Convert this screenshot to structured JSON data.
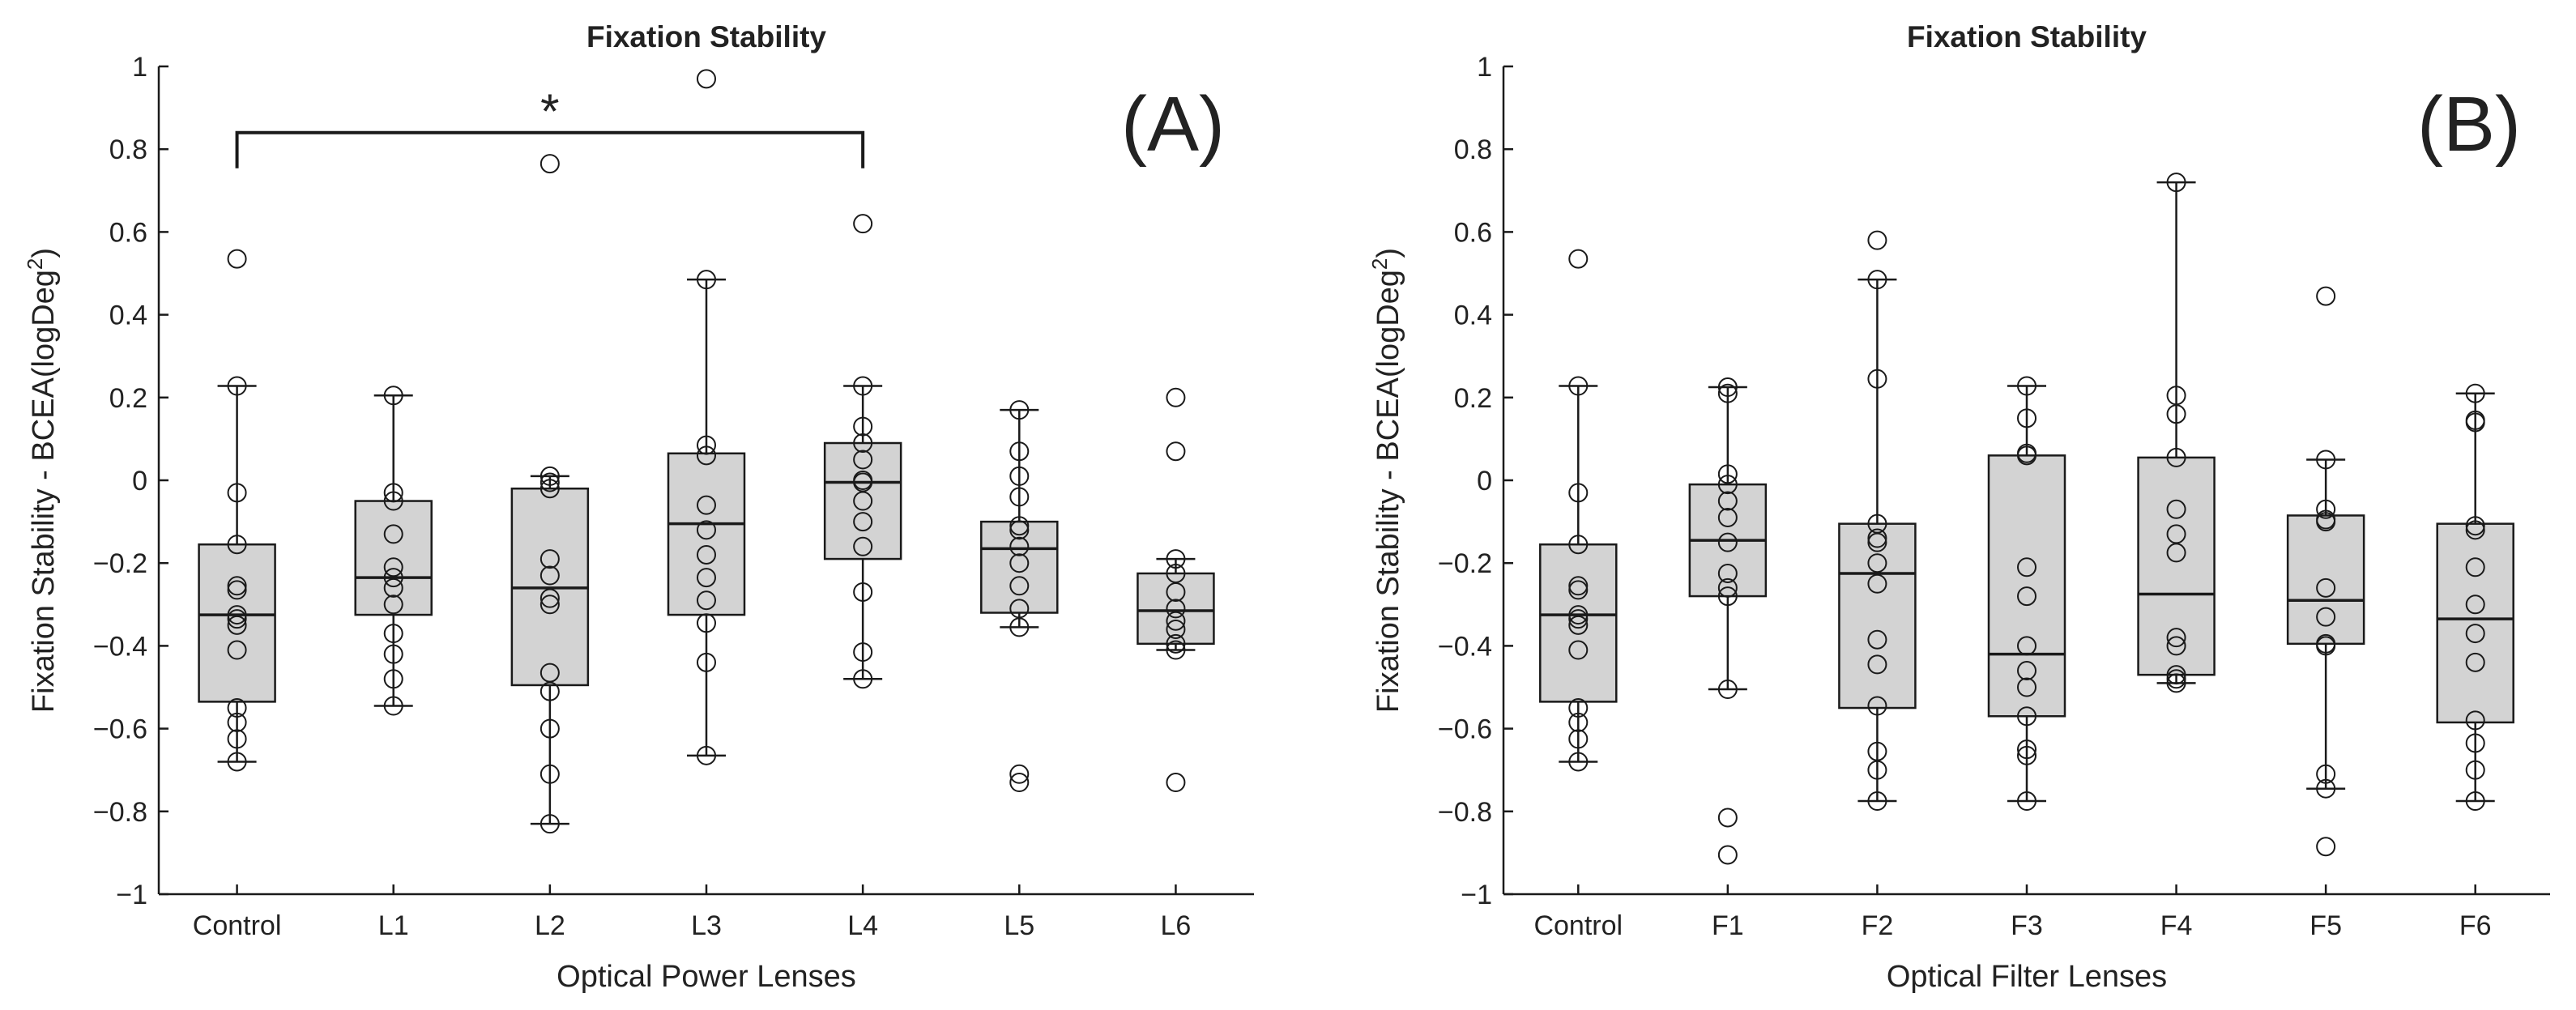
{
  "chart_data": [
    {
      "type": "boxplot",
      "title": "Fixation Stability",
      "panel_label": "(A)",
      "xlabel": "Optical Power Lenses",
      "ylabel": "Fixation Stability - BCEA(logDeg",
      "ylabel_superscript": "2",
      "ylabel_close": ")",
      "ylim": [
        -1,
        1
      ],
      "yticks": [
        -1,
        -0.8,
        -0.6,
        -0.4,
        -0.2,
        0,
        0.2,
        0.4,
        0.6,
        0.8,
        1
      ],
      "ytick_labels": [
        "−1",
        "−0.8",
        "−0.6",
        "−0.4",
        "−0.2",
        "0",
        "0.2",
        "0.4",
        "0.6",
        "0.8",
        "1"
      ],
      "categories": [
        "Control",
        "L1",
        "L2",
        "L3",
        "L4",
        "L5",
        "L6"
      ],
      "significance": {
        "from": "Control",
        "to": "L4",
        "label": "*",
        "level": 0.84
      },
      "boxes": [
        {
          "q1": -0.535,
          "median": -0.325,
          "q3": -0.155,
          "whisker_low": -0.68,
          "whisker_high": 0.228,
          "points": [
            0.535,
            0.228,
            -0.03,
            -0.155,
            -0.255,
            -0.265,
            -0.325,
            -0.335,
            -0.35,
            -0.41,
            -0.55,
            -0.585,
            -0.625,
            -0.68
          ]
        },
        {
          "q1": -0.325,
          "median": -0.235,
          "q3": -0.05,
          "whisker_low": -0.545,
          "whisker_high": 0.205,
          "points": [
            0.205,
            -0.03,
            -0.05,
            -0.13,
            -0.21,
            -0.235,
            -0.26,
            -0.3,
            -0.37,
            -0.42,
            -0.48,
            -0.545
          ]
        },
        {
          "q1": -0.495,
          "median": -0.26,
          "q3": -0.02,
          "whisker_low": -0.83,
          "whisker_high": 0.01,
          "points": [
            0.765,
            0.01,
            -0.005,
            -0.02,
            -0.19,
            -0.23,
            -0.285,
            -0.3,
            -0.465,
            -0.51,
            -0.6,
            -0.71,
            -0.83
          ]
        },
        {
          "q1": -0.325,
          "median": -0.105,
          "q3": 0.065,
          "whisker_low": -0.665,
          "whisker_high": 0.485,
          "points": [
            0.97,
            0.485,
            0.085,
            0.06,
            -0.06,
            -0.12,
            -0.18,
            -0.235,
            -0.29,
            -0.345,
            -0.44,
            -0.665
          ]
        },
        {
          "q1": -0.19,
          "median": -0.005,
          "q3": 0.09,
          "whisker_low": -0.48,
          "whisker_high": 0.228,
          "points": [
            0.62,
            0.228,
            0.13,
            0.09,
            0.05,
            0.0,
            -0.005,
            -0.05,
            -0.1,
            -0.16,
            -0.27,
            -0.415,
            -0.48
          ]
        },
        {
          "q1": -0.32,
          "median": -0.165,
          "q3": -0.1,
          "whisker_low": -0.355,
          "whisker_high": 0.17,
          "points": [
            0.17,
            0.07,
            0.01,
            -0.04,
            -0.11,
            -0.12,
            -0.16,
            -0.2,
            -0.255,
            -0.31,
            -0.355,
            -0.71,
            -0.73
          ]
        },
        {
          "q1": -0.395,
          "median": -0.315,
          "q3": -0.225,
          "whisker_low": -0.41,
          "whisker_high": -0.19,
          "points": [
            0.2,
            0.07,
            -0.19,
            -0.225,
            -0.27,
            -0.31,
            -0.34,
            -0.36,
            -0.395,
            -0.41,
            -0.73
          ]
        }
      ]
    },
    {
      "type": "boxplot",
      "title": "Fixation Stability",
      "panel_label": "(B)",
      "xlabel": "Optical Filter Lenses",
      "ylabel": "Fixation Stability - BCEA(logDeg",
      "ylabel_superscript": "2",
      "ylabel_close": ")",
      "ylim": [
        -1,
        1
      ],
      "yticks": [
        -1,
        -0.8,
        -0.6,
        -0.4,
        -0.2,
        0,
        0.2,
        0.4,
        0.6,
        0.8,
        1
      ],
      "ytick_labels": [
        "−1",
        "−0.8",
        "−0.6",
        "−0.4",
        "−0.2",
        "0",
        "0.2",
        "0.4",
        "0.6",
        "0.8",
        "1"
      ],
      "categories": [
        "Control",
        "F1",
        "F2",
        "F3",
        "F4",
        "F5",
        "F6"
      ],
      "boxes": [
        {
          "q1": -0.535,
          "median": -0.325,
          "q3": -0.155,
          "whisker_low": -0.68,
          "whisker_high": 0.228,
          "points": [
            0.535,
            0.228,
            -0.03,
            -0.155,
            -0.255,
            -0.265,
            -0.325,
            -0.335,
            -0.35,
            -0.41,
            -0.55,
            -0.585,
            -0.625,
            -0.68
          ]
        },
        {
          "q1": -0.28,
          "median": -0.145,
          "q3": -0.01,
          "whisker_low": -0.505,
          "whisker_high": 0.225,
          "points": [
            0.225,
            0.21,
            0.015,
            -0.01,
            -0.05,
            -0.09,
            -0.15,
            -0.225,
            -0.26,
            -0.28,
            -0.505,
            -0.815,
            -0.905
          ]
        },
        {
          "q1": -0.55,
          "median": -0.225,
          "q3": -0.105,
          "whisker_low": -0.775,
          "whisker_high": 0.485,
          "points": [
            0.58,
            0.485,
            0.245,
            -0.105,
            -0.14,
            -0.15,
            -0.2,
            -0.25,
            -0.385,
            -0.445,
            -0.545,
            -0.655,
            -0.7,
            -0.775
          ]
        },
        {
          "q1": -0.57,
          "median": -0.42,
          "q3": 0.06,
          "whisker_low": -0.775,
          "whisker_high": 0.228,
          "points": [
            0.228,
            0.15,
            0.065,
            0.06,
            -0.21,
            -0.28,
            -0.4,
            -0.46,
            -0.5,
            -0.57,
            -0.65,
            -0.665,
            -0.775
          ]
        },
        {
          "q1": -0.47,
          "median": -0.275,
          "q3": 0.055,
          "whisker_low": -0.49,
          "whisker_high": 0.72,
          "points": [
            0.72,
            0.205,
            0.16,
            0.055,
            -0.07,
            -0.13,
            -0.175,
            -0.38,
            -0.4,
            -0.47,
            -0.48,
            -0.49
          ]
        },
        {
          "q1": -0.395,
          "median": -0.29,
          "q3": -0.085,
          "whisker_low": -0.745,
          "whisker_high": 0.05,
          "points": [
            0.445,
            0.05,
            -0.07,
            -0.095,
            -0.1,
            -0.26,
            -0.33,
            -0.395,
            -0.4,
            -0.71,
            -0.745,
            -0.885
          ]
        },
        {
          "q1": -0.585,
          "median": -0.335,
          "q3": -0.105,
          "whisker_low": -0.775,
          "whisker_high": 0.21,
          "points": [
            0.21,
            0.145,
            0.14,
            -0.11,
            -0.12,
            -0.21,
            -0.3,
            -0.37,
            -0.44,
            -0.58,
            -0.635,
            -0.7,
            -0.775
          ]
        }
      ]
    }
  ]
}
